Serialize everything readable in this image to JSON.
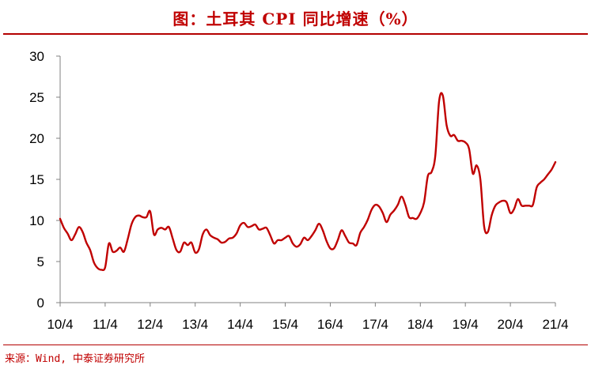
{
  "title": "图：土耳其 CPI 同比增速（%）",
  "source": "来源：Wind, 中泰证券研究所",
  "colors": {
    "line": "#c00000",
    "title": "#c00000",
    "axis": "#808080"
  },
  "chart_data": {
    "type": "line",
    "title": "图：土耳其 CPI 同比增速（%）",
    "xlabel": "",
    "ylabel": "",
    "ylim": [
      0,
      30
    ],
    "yticks": [
      0,
      5,
      10,
      15,
      20,
      25,
      30
    ],
    "x_start": "2010-04",
    "x_end": "2021-04",
    "xtick_labels": [
      "10/4",
      "11/4",
      "12/4",
      "13/4",
      "14/4",
      "15/4",
      "16/4",
      "17/4",
      "18/4",
      "19/4",
      "20/4",
      "21/4"
    ],
    "grid": false,
    "legend": "none",
    "series": [
      {
        "name": "",
        "color": "#c00000",
        "x": [
          "2010-04",
          "2010-05",
          "2010-06",
          "2010-07",
          "2010-08",
          "2010-09",
          "2010-10",
          "2010-11",
          "2010-12",
          "2011-01",
          "2011-02",
          "2011-03",
          "2011-04",
          "2011-05",
          "2011-06",
          "2011-07",
          "2011-08",
          "2011-09",
          "2011-10",
          "2011-11",
          "2011-12",
          "2012-01",
          "2012-02",
          "2012-03",
          "2012-04",
          "2012-05",
          "2012-06",
          "2012-07",
          "2012-08",
          "2012-09",
          "2012-10",
          "2012-11",
          "2012-12",
          "2013-01",
          "2013-02",
          "2013-03",
          "2013-04",
          "2013-05",
          "2013-06",
          "2013-07",
          "2013-08",
          "2013-09",
          "2013-10",
          "2013-11",
          "2013-12",
          "2014-01",
          "2014-02",
          "2014-03",
          "2014-04",
          "2014-05",
          "2014-06",
          "2014-07",
          "2014-08",
          "2014-09",
          "2014-10",
          "2014-11",
          "2014-12",
          "2015-01",
          "2015-02",
          "2015-03",
          "2015-04",
          "2015-05",
          "2015-06",
          "2015-07",
          "2015-08",
          "2015-09",
          "2015-10",
          "2015-11",
          "2015-12",
          "2016-01",
          "2016-02",
          "2016-03",
          "2016-04",
          "2016-05",
          "2016-06",
          "2016-07",
          "2016-08",
          "2016-09",
          "2016-10",
          "2016-11",
          "2016-12",
          "2017-01",
          "2017-02",
          "2017-03",
          "2017-04",
          "2017-05",
          "2017-06",
          "2017-07",
          "2017-08",
          "2017-09",
          "2017-10",
          "2017-11",
          "2017-12",
          "2018-01",
          "2018-02",
          "2018-03",
          "2018-04",
          "2018-05",
          "2018-06",
          "2018-07",
          "2018-08",
          "2018-09",
          "2018-10",
          "2018-11",
          "2018-12",
          "2019-01",
          "2019-02",
          "2019-03",
          "2019-04",
          "2019-05",
          "2019-06",
          "2019-07",
          "2019-08",
          "2019-09",
          "2019-10",
          "2019-11",
          "2019-12",
          "2020-01",
          "2020-02",
          "2020-03",
          "2020-04",
          "2020-05",
          "2020-06",
          "2020-07",
          "2020-08",
          "2020-09",
          "2020-10",
          "2020-11",
          "2020-12",
          "2021-01",
          "2021-02",
          "2021-03",
          "2021-04"
        ],
        "values": [
          10.2,
          9.1,
          8.4,
          7.6,
          8.3,
          9.2,
          8.6,
          7.3,
          6.4,
          4.9,
          4.2,
          4.0,
          4.3,
          7.2,
          6.2,
          6.3,
          6.7,
          6.2,
          7.7,
          9.5,
          10.4,
          10.6,
          10.4,
          10.4,
          11.1,
          8.3,
          8.9,
          9.1,
          8.9,
          9.2,
          7.8,
          6.4,
          6.2,
          7.3,
          7.0,
          7.3,
          6.1,
          6.5,
          8.3,
          8.9,
          8.2,
          7.9,
          7.7,
          7.3,
          7.4,
          7.8,
          7.9,
          8.4,
          9.4,
          9.7,
          9.2,
          9.3,
          9.5,
          8.9,
          9.0,
          9.1,
          8.2,
          7.2,
          7.6,
          7.6,
          7.9,
          8.1,
          7.2,
          6.8,
          7.1,
          7.9,
          7.6,
          8.1,
          8.8,
          9.6,
          8.8,
          7.5,
          6.6,
          6.6,
          7.6,
          8.8,
          8.1,
          7.3,
          7.2,
          7.0,
          8.5,
          9.2,
          10.1,
          11.3,
          11.9,
          11.7,
          10.9,
          9.8,
          10.7,
          11.2,
          11.9,
          12.9,
          11.9,
          10.4,
          10.3,
          10.2,
          10.9,
          12.2,
          15.4,
          15.9,
          17.9,
          24.5,
          25.2,
          21.6,
          20.3,
          20.4,
          19.7,
          19.7,
          19.5,
          18.7,
          15.7,
          16.7,
          15.0,
          9.3,
          8.6,
          10.6,
          11.8,
          12.2,
          12.4,
          12.2,
          10.9,
          11.4,
          12.6,
          11.8,
          11.8,
          11.8,
          11.9,
          14.0,
          14.6,
          15.0,
          15.6,
          16.2,
          17.1
        ]
      }
    ]
  }
}
